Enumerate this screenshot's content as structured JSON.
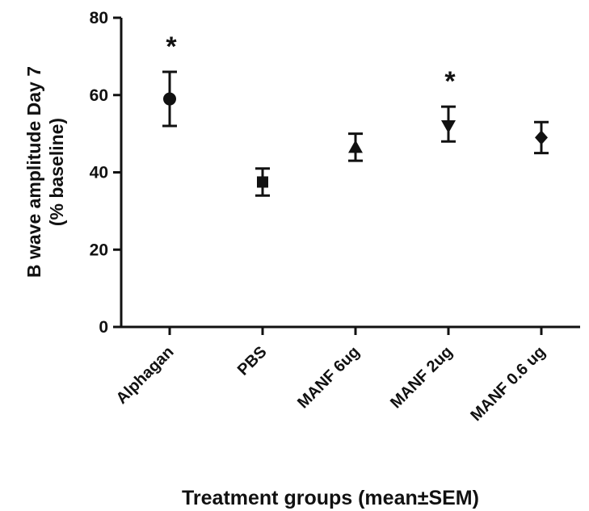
{
  "chart_data": {
    "type": "scatter",
    "title": "",
    "ylabel_line1": "B wave amplitude Day 7",
    "ylabel_line2": "(% baseline)",
    "xlabel": "Treatment groups (mean±SEM)",
    "ylim": [
      0,
      80
    ],
    "yticks": [
      0,
      20,
      40,
      60,
      80
    ],
    "categories": [
      "Alphagan",
      "PBS",
      "MANF 6ug",
      "MANF 2ug",
      "MANF 0.6 ug"
    ],
    "values": [
      59,
      37.5,
      46.5,
      52,
      49
    ],
    "err_upper": [
      66,
      41,
      50,
      57,
      53
    ],
    "err_lower": [
      52,
      34,
      43,
      48,
      45
    ],
    "markers": [
      "circle",
      "square",
      "triangle-up",
      "triangle-down",
      "diamond"
    ],
    "significance": [
      "*",
      "",
      "",
      "*",
      ""
    ],
    "grid": false,
    "legend": "none"
  }
}
